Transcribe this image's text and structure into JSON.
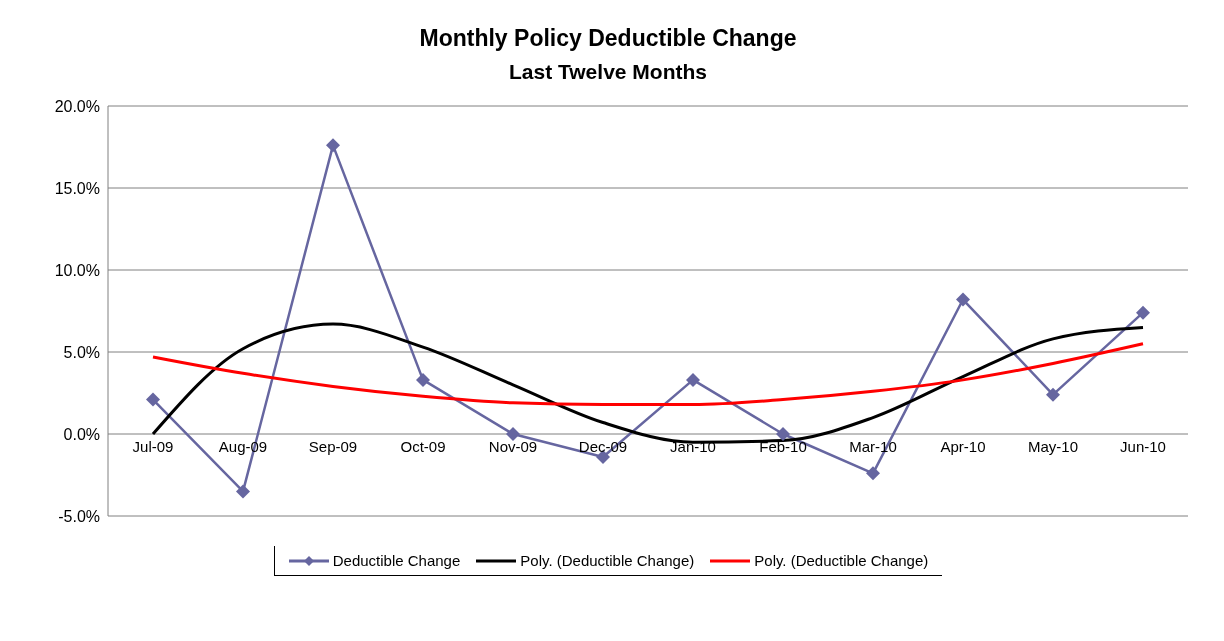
{
  "chart_data": {
    "type": "line",
    "title": "Monthly Policy Deductible Change",
    "subtitle": "Last Twelve Months",
    "categories": [
      "Jul-09",
      "Aug-09",
      "Sep-09",
      "Oct-09",
      "Nov-09",
      "Dec-09",
      "Jan-10",
      "Feb-10",
      "Mar-10",
      "Apr-10",
      "May-10",
      "Jun-10"
    ],
    "series": [
      {
        "name": "Deductible Change",
        "color": "#6666a0",
        "marker": "diamond",
        "values": [
          2.1,
          -3.5,
          17.6,
          3.3,
          0,
          -1.4,
          3.3,
          0,
          -2.4,
          8.2,
          2.4,
          7.4
        ]
      },
      {
        "name": "Poly. (Deductible Change)",
        "color": "#000000",
        "marker": "none",
        "values": [
          0,
          5.2,
          6.7,
          5.3,
          3.0,
          0.7,
          -0.5,
          -0.4,
          1.0,
          3.5,
          5.8,
          6.5
        ]
      },
      {
        "name": "Poly. (Deductible Change)",
        "color": "#ff0000",
        "marker": "none",
        "values": [
          4.7,
          3.7,
          2.9,
          2.3,
          1.9,
          1.8,
          1.8,
          2.1,
          2.6,
          3.3,
          4.3,
          5.5
        ]
      }
    ],
    "ylim": [
      -5,
      20
    ],
    "yticks": [
      {
        "value": -5,
        "label": "-5.0%"
      },
      {
        "value": 0,
        "label": "0.0%"
      },
      {
        "value": 5,
        "label": "5.0%"
      },
      {
        "value": 10,
        "label": "10.0%"
      },
      {
        "value": 15,
        "label": "15.0%"
      },
      {
        "value": 20,
        "label": "20.0%"
      }
    ],
    "grid": "y",
    "legend": "bottom",
    "line_style": "solid"
  }
}
